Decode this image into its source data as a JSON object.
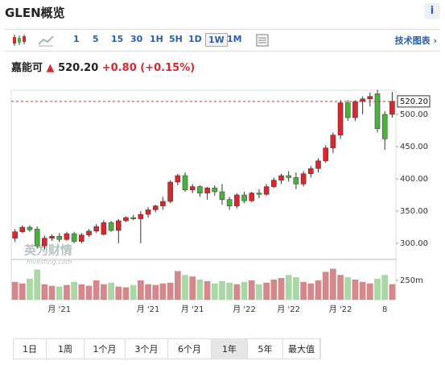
{
  "header": {
    "title": "GLEN概览",
    "info": "i"
  },
  "toolbar": {
    "intervals": [
      {
        "label": "1"
      },
      {
        "label": "5"
      },
      {
        "label": "15"
      },
      {
        "label": "30"
      },
      {
        "label": "1H"
      },
      {
        "label": "5H"
      },
      {
        "label": "1D"
      },
      {
        "label": "1W",
        "active": true
      },
      {
        "label": "1M"
      }
    ],
    "link": "技术图表 ›"
  },
  "quote": {
    "name": "嘉能可",
    "price": "520.20",
    "change": "+0.80",
    "change_pct": "(+0.15%)"
  },
  "chart_data": {
    "type": "candlestick",
    "categories": [
      null,
      null,
      null,
      null,
      null,
      null,
      "月 '21",
      null,
      null,
      null,
      null,
      null,
      null,
      null,
      null,
      null,
      null,
      null,
      "月 '21",
      null,
      null,
      null,
      null,
      null,
      "月 '21",
      null,
      null,
      null,
      null,
      null,
      null,
      "月 '22",
      null,
      null,
      null,
      null,
      null,
      "月 '22",
      null,
      null,
      null,
      null,
      null,
      null,
      "月 '22",
      null,
      null,
      null,
      null,
      null,
      "8",
      null
    ],
    "open": [
      308,
      318,
      325,
      322,
      296,
      308,
      311,
      306,
      315,
      303,
      313,
      319,
      314,
      332,
      320,
      335,
      340,
      338,
      345,
      352,
      358,
      365,
      395,
      405,
      383,
      388,
      378,
      386,
      380,
      368,
      358,
      375,
      366,
      378,
      376,
      388,
      398,
      405,
      402,
      392,
      408,
      416,
      428,
      448,
      468,
      518,
      495,
      520,
      524,
      532,
      500,
      500
    ],
    "high": [
      322,
      328,
      328,
      326,
      312,
      314,
      316,
      318,
      318,
      316,
      322,
      330,
      336,
      335,
      338,
      342,
      344,
      350,
      356,
      360,
      372,
      398,
      408,
      410,
      392,
      390,
      388,
      390,
      392,
      372,
      378,
      380,
      380,
      384,
      392,
      402,
      408,
      412,
      410,
      412,
      420,
      432,
      452,
      472,
      522,
      522,
      522,
      528,
      534,
      538,
      505,
      535
    ],
    "low": [
      302,
      316,
      318,
      292,
      290,
      304,
      302,
      304,
      300,
      300,
      310,
      316,
      312,
      318,
      300,
      333,
      336,
      300,
      340,
      348,
      352,
      362,
      390,
      380,
      378,
      372,
      368,
      374,
      360,
      352,
      354,
      362,
      364,
      370,
      374,
      386,
      392,
      396,
      384,
      388,
      402,
      410,
      425,
      440,
      462,
      490,
      490,
      500,
      512,
      472,
      445,
      495
    ],
    "close": [
      318,
      325,
      321,
      296,
      308,
      311,
      306,
      315,
      303,
      313,
      319,
      326,
      332,
      320,
      335,
      340,
      338,
      345,
      352,
      358,
      365,
      395,
      405,
      383,
      388,
      378,
      386,
      380,
      368,
      358,
      375,
      366,
      378,
      376,
      388,
      398,
      405,
      402,
      392,
      408,
      416,
      428,
      448,
      468,
      518,
      495,
      520,
      524,
      528,
      478,
      462,
      520.2
    ],
    "volume": [
      230,
      210,
      270,
      390,
      200,
      180,
      170,
      190,
      230,
      200,
      180,
      250,
      200,
      220,
      170,
      160,
      190,
      250,
      200,
      190,
      210,
      220,
      370,
      320,
      300,
      260,
      240,
      210,
      240,
      220,
      200,
      230,
      250,
      200,
      220,
      260,
      280,
      320,
      290,
      230,
      210,
      250,
      360,
      400,
      320,
      290,
      260,
      230,
      210,
      270,
      320,
      200
    ],
    "up_color": "#d9272e",
    "down_color": "#4caf3f",
    "vol_up_color": "#d4888b",
    "vol_down_color": "#a9d8a5",
    "ylim": [
      277.5,
      537.5
    ],
    "yticks": [
      {
        "value": 300,
        "label": "300.00"
      },
      {
        "value": 350,
        "label": "350.00"
      },
      {
        "value": 400,
        "label": "400.00"
      },
      {
        "value": 450,
        "label": "450.00"
      },
      {
        "value": 500,
        "label": "500.00"
      }
    ],
    "vlim": [
      0,
      520
    ],
    "vticks": [
      {
        "value": 250,
        "label": "250m"
      }
    ],
    "last": {
      "value": 520.2,
      "label": "520.20"
    },
    "watermark": {
      "brand": "英为财情",
      "site": "Investing.com"
    }
  },
  "ranges": [
    {
      "label": "1日"
    },
    {
      "label": "1周"
    },
    {
      "label": "1个月"
    },
    {
      "label": "3个月"
    },
    {
      "label": "6个月"
    },
    {
      "label": "1年",
      "active": true
    },
    {
      "label": "5年"
    },
    {
      "label": "最大值"
    }
  ]
}
